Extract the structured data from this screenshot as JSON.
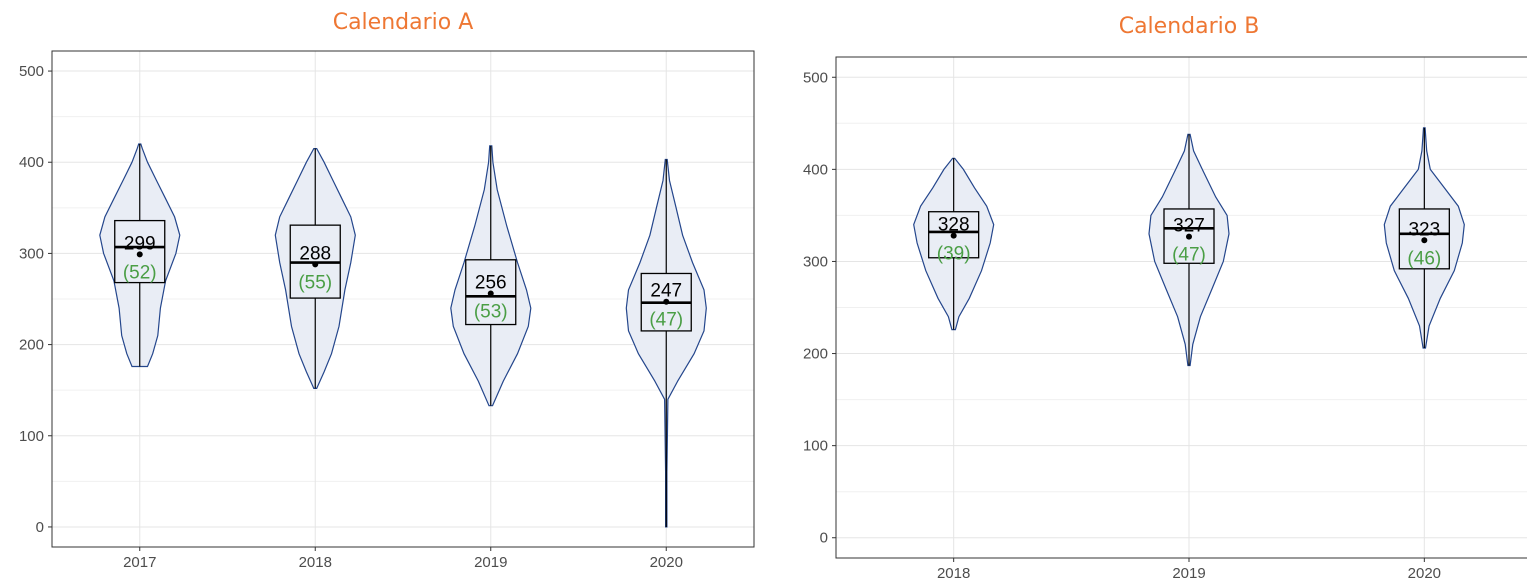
{
  "chart_data": [
    {
      "type": "violin",
      "title": "Calendario A",
      "categories": [
        "2017",
        "2018",
        "2019",
        "2020"
      ],
      "ylim": [
        -22,
        522
      ],
      "yticks": [
        0,
        100,
        200,
        300,
        400,
        500
      ],
      "grid": true,
      "groups": [
        {
          "x": "2017",
          "min": 176,
          "max": 420,
          "q1": 268,
          "median": 307,
          "q3": 336,
          "mean": 299,
          "mean_label": "299",
          "sd_label": "(52)",
          "density": [
            [
              176,
              0.3
            ],
            [
              190,
              0.5
            ],
            [
              210,
              0.7
            ],
            [
              240,
              0.8
            ],
            [
              270,
              1.0
            ],
            [
              300,
              1.4
            ],
            [
              320,
              1.55
            ],
            [
              340,
              1.35
            ],
            [
              360,
              1.0
            ],
            [
              380,
              0.65
            ],
            [
              400,
              0.3
            ],
            [
              415,
              0.1
            ],
            [
              420,
              0.04
            ]
          ]
        },
        {
          "x": "2018",
          "min": 152,
          "max": 415,
          "q1": 251,
          "median": 290,
          "q3": 331,
          "mean": 288,
          "mean_label": "288",
          "sd_label": "(55)",
          "density": [
            [
              152,
              0.05
            ],
            [
              170,
              0.3
            ],
            [
              190,
              0.55
            ],
            [
              220,
              0.8
            ],
            [
              260,
              1.0
            ],
            [
              290,
              1.2
            ],
            [
              320,
              1.35
            ],
            [
              340,
              1.2
            ],
            [
              360,
              0.9
            ],
            [
              380,
              0.6
            ],
            [
              400,
              0.3
            ],
            [
              415,
              0.05
            ]
          ]
        },
        {
          "x": "2019",
          "min": 133,
          "max": 418,
          "q1": 222,
          "median": 253,
          "q3": 293,
          "mean": 256,
          "mean_label": "256",
          "sd_label": "(53)",
          "density": [
            [
              133,
              0.05
            ],
            [
              160,
              0.35
            ],
            [
              190,
              0.75
            ],
            [
              220,
              1.05
            ],
            [
              240,
              1.12
            ],
            [
              260,
              1.0
            ],
            [
              290,
              0.75
            ],
            [
              330,
              0.45
            ],
            [
              370,
              0.18
            ],
            [
              400,
              0.06
            ],
            [
              418,
              0.03
            ]
          ]
        },
        {
          "x": "2020",
          "min": 0,
          "max": 403,
          "q1": 215,
          "median": 246,
          "q3": 278,
          "mean": 247,
          "mean_label": "247",
          "sd_label": "(47)",
          "density": [
            [
              0,
              0.02
            ],
            [
              60,
              0.02
            ],
            [
              140,
              0.05
            ],
            [
              160,
              0.35
            ],
            [
              190,
              0.85
            ],
            [
              215,
              1.15
            ],
            [
              240,
              1.22
            ],
            [
              260,
              1.15
            ],
            [
              290,
              0.8
            ],
            [
              320,
              0.5
            ],
            [
              350,
              0.3
            ],
            [
              380,
              0.1
            ],
            [
              403,
              0.03
            ]
          ]
        }
      ]
    },
    {
      "type": "violin",
      "title": "Calendario B",
      "categories": [
        "2018",
        "2019",
        "2020"
      ],
      "ylim": [
        -22,
        522
      ],
      "yticks": [
        0,
        100,
        200,
        300,
        400,
        500
      ],
      "grid": true,
      "groups": [
        {
          "x": "2018",
          "min": 226,
          "max": 412,
          "q1": 304,
          "median": 332,
          "q3": 354,
          "mean": 328,
          "mean_label": "328",
          "sd_label": "(39)",
          "density": [
            [
              226,
              0.05
            ],
            [
              240,
              0.15
            ],
            [
              260,
              0.45
            ],
            [
              290,
              0.8
            ],
            [
              320,
              1.05
            ],
            [
              340,
              1.15
            ],
            [
              360,
              0.95
            ],
            [
              380,
              0.6
            ],
            [
              400,
              0.28
            ],
            [
              412,
              0.03
            ]
          ]
        },
        {
          "x": "2019",
          "min": 187,
          "max": 438,
          "q1": 298,
          "median": 336,
          "q3": 357,
          "mean": 327,
          "mean_label": "327",
          "sd_label": "(47)",
          "density": [
            [
              187,
              0.03
            ],
            [
              210,
              0.1
            ],
            [
              240,
              0.3
            ],
            [
              270,
              0.6
            ],
            [
              300,
              0.9
            ],
            [
              330,
              1.05
            ],
            [
              350,
              1.0
            ],
            [
              370,
              0.7
            ],
            [
              400,
              0.35
            ],
            [
              420,
              0.12
            ],
            [
              438,
              0.03
            ]
          ]
        },
        {
          "x": "2020",
          "min": 206,
          "max": 445,
          "q1": 292,
          "median": 330,
          "q3": 357,
          "mean": 323,
          "mean_label": "323",
          "sd_label": "(46)",
          "density": [
            [
              206,
              0.03
            ],
            [
              230,
              0.12
            ],
            [
              260,
              0.4
            ],
            [
              290,
              0.75
            ],
            [
              320,
              0.95
            ],
            [
              340,
              1.0
            ],
            [
              360,
              0.85
            ],
            [
              380,
              0.5
            ],
            [
              400,
              0.15
            ],
            [
              420,
              0.06
            ],
            [
              445,
              0.02
            ]
          ]
        }
      ]
    }
  ],
  "colors": {
    "title": "#ee7733",
    "violin_fill": "#e9edf5",
    "violin_stroke": "#24468c",
    "grid": "#e5e5e5",
    "sd_label": "#4a9e45"
  }
}
